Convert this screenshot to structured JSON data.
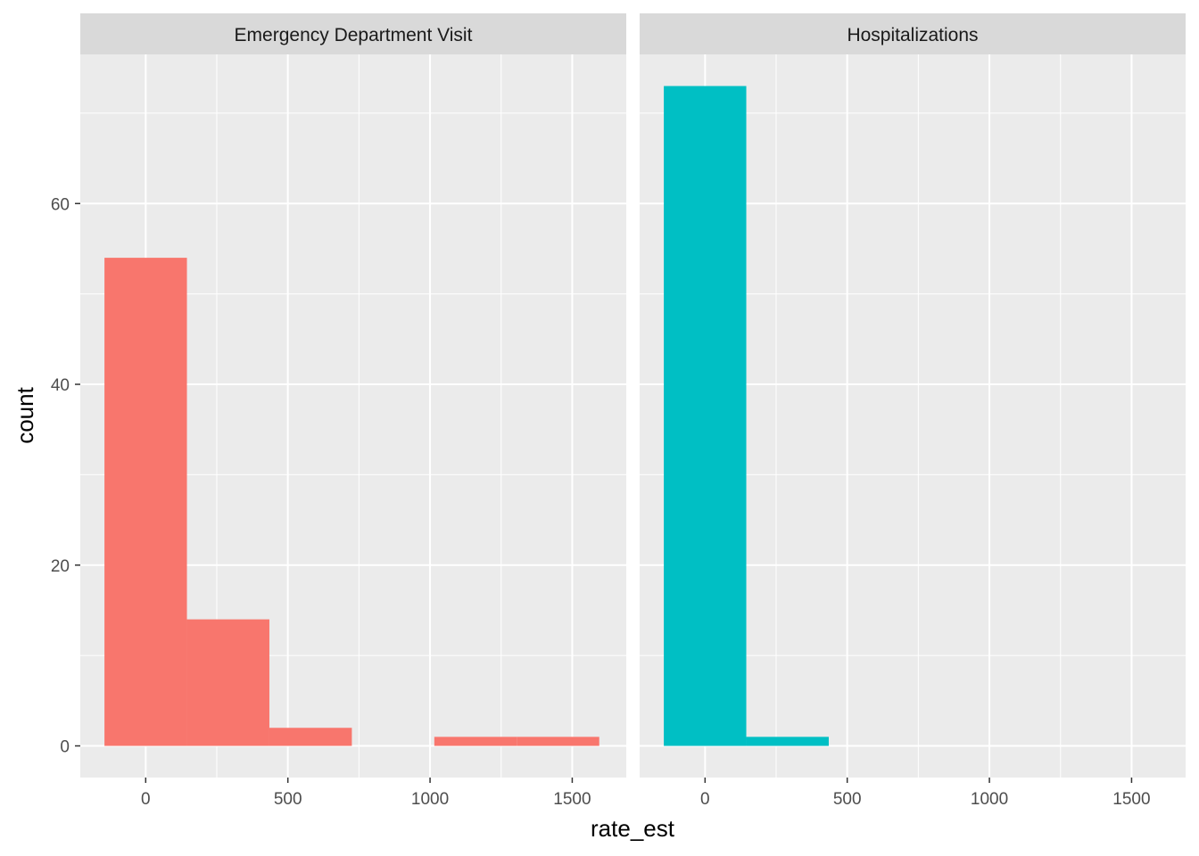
{
  "chart_data": {
    "type": "bar",
    "subtype": "histogram-facets",
    "xlabel": "rate_est",
    "ylabel": "count",
    "xlim": [
      -230,
      1690
    ],
    "ylim": [
      -3.5,
      76.5
    ],
    "x_ticks": [
      0,
      500,
      1000,
      1500
    ],
    "x_minor_ticks": [
      250,
      750,
      1250
    ],
    "y_ticks": [
      0,
      20,
      40,
      60
    ],
    "y_minor_ticks": [
      10,
      30,
      50,
      70
    ],
    "panel_background": "#ebebeb",
    "strip_background": "#d9d9d9",
    "grid": true,
    "legend": "none",
    "facets": [
      {
        "name": "Emergency Department Visit",
        "color": "#f8766d",
        "bins": [
          {
            "x0": -145,
            "x1": 145,
            "count": 54
          },
          {
            "x0": 145,
            "x1": 435,
            "count": 14
          },
          {
            "x0": 435,
            "x1": 725,
            "count": 2
          },
          {
            "x0": 725,
            "x1": 1015,
            "count": 0
          },
          {
            "x0": 1015,
            "x1": 1305,
            "count": 1
          },
          {
            "x0": 1305,
            "x1": 1595,
            "count": 1
          }
        ]
      },
      {
        "name": "Hospitalizations",
        "color": "#00bfc4",
        "bins": [
          {
            "x0": -145,
            "x1": 145,
            "count": 73
          },
          {
            "x0": 145,
            "x1": 435,
            "count": 1
          }
        ]
      }
    ]
  }
}
